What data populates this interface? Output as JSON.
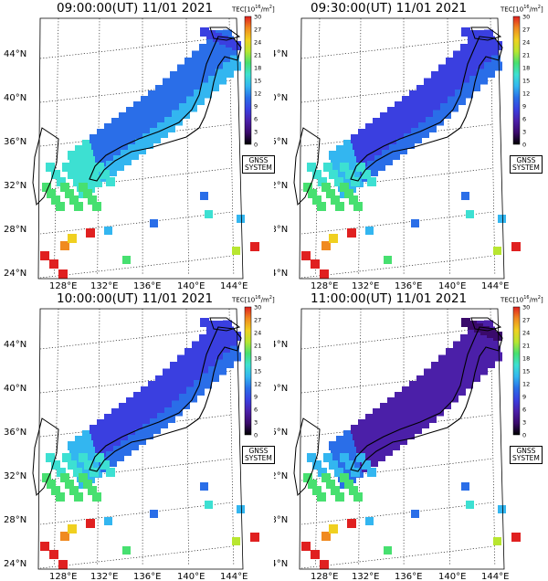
{
  "colorbar": {
    "unit_label": "TEC[10",
    "unit_exp": "16",
    "unit_mid": "/m",
    "unit_exp2": "2",
    "unit_end": "]",
    "ticks": [
      "30",
      "27",
      "24",
      "21",
      "18",
      "15",
      "12",
      "9",
      "6",
      "3",
      "0"
    ]
  },
  "system_label_line1": "GNSS",
  "system_label_line2": "SYSTEM",
  "latitude_labels": [
    "44°N",
    "40°N",
    "36°N",
    "32°N",
    "28°N",
    "24°N"
  ],
  "longitude_labels": [
    "128°E",
    "132°E",
    "136°E",
    "140°E",
    "144°E"
  ],
  "panels": [
    {
      "title": "09:00:00(UT) 11/01 2021"
    },
    {
      "title": "09:30:00(UT) 11/01 2021"
    },
    {
      "title": "10:00:00(UT) 11/01 2021"
    },
    {
      "title": "11:00:00(UT) 11/01 2021"
    }
  ],
  "colors": {
    "scale": [
      "#000000",
      "#3a0a6b",
      "#4b1fa8",
      "#3a3fe0",
      "#2a6ee8",
      "#33b6f0",
      "#3de0d2",
      "#47e070",
      "#b8e630",
      "#f0d020",
      "#f08a20",
      "#e02020"
    ]
  }
}
